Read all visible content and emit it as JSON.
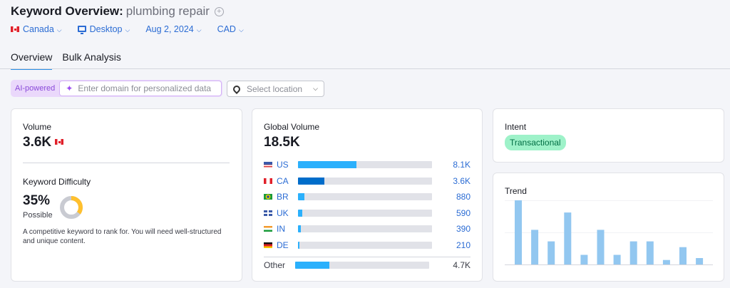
{
  "header": {
    "title": "Keyword Overview:",
    "keyword": "plumbing repair"
  },
  "filters": {
    "country": "Canada",
    "device": "Desktop",
    "date": "Aug 2, 2024",
    "currency": "CAD"
  },
  "tabs": [
    {
      "label": "Overview",
      "active": true
    },
    {
      "label": "Bulk Analysis",
      "active": false
    }
  ],
  "ai": {
    "label": "AI-powered",
    "placeholder": "Enter domain for personalized data"
  },
  "location": {
    "placeholder": "Select location"
  },
  "volume": {
    "label": "Volume",
    "value": "3.6K"
  },
  "difficulty": {
    "label": "Keyword Difficulty",
    "value": "35%",
    "percent": 35,
    "level": "Possible",
    "description": "A competitive keyword to rank for. You will need well-structured and unique content.",
    "color": "#ffc02e"
  },
  "global": {
    "label": "Global Volume",
    "value": "18.5K",
    "total": 18500,
    "rows": [
      {
        "code": "US",
        "value": "8.1K",
        "num": 8100,
        "color": "#2bb0fc"
      },
      {
        "code": "CA",
        "value": "3.6K",
        "num": 3600,
        "color": "#006dca"
      },
      {
        "code": "BR",
        "value": "880",
        "num": 880,
        "color": "#2bb0fc"
      },
      {
        "code": "UK",
        "value": "590",
        "num": 590,
        "color": "#2bb0fc"
      },
      {
        "code": "IN",
        "value": "390",
        "num": 390,
        "color": "#2bb0fc"
      },
      {
        "code": "DE",
        "value": "210",
        "num": 210,
        "color": "#2bb0fc"
      }
    ],
    "other": {
      "label": "Other",
      "value": "4.7K",
      "num": 4700
    }
  },
  "intent": {
    "label": "Intent",
    "value": "Transactional"
  },
  "trend": {
    "label": "Trend",
    "chart_data": {
      "type": "bar",
      "values": [
        100,
        54,
        36,
        81,
        15,
        54,
        15,
        36,
        36,
        7,
        27,
        10
      ],
      "color": "#92c7f0"
    }
  }
}
